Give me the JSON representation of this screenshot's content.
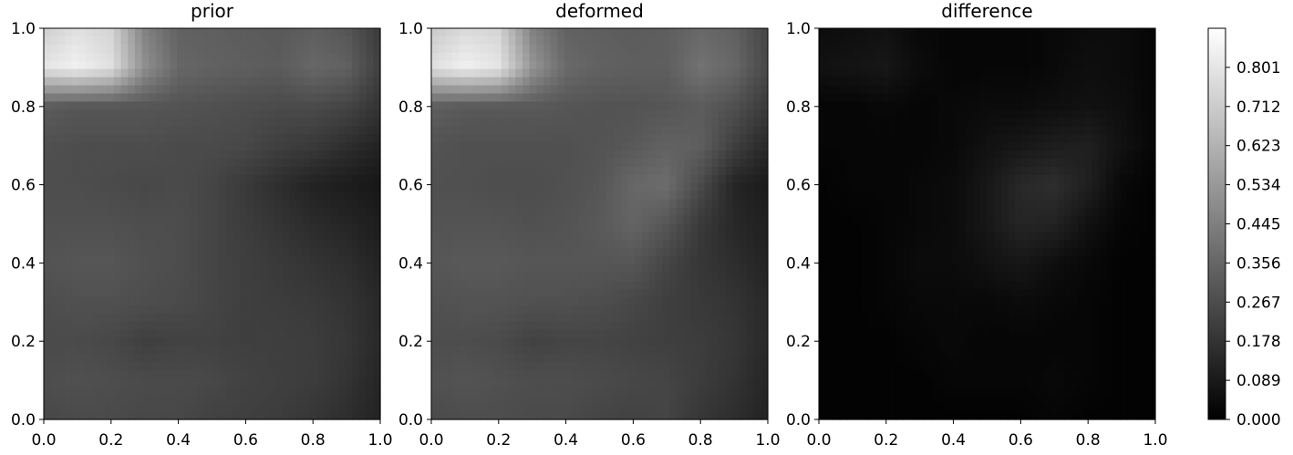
{
  "chart_data": [
    {
      "type": "heatmap",
      "title": "prior",
      "xlim": [
        0.0,
        1.0
      ],
      "ylim": [
        0.0,
        1.0
      ],
      "xticks": [
        "0.0",
        "0.2",
        "0.4",
        "0.6",
        "0.8",
        "1.0"
      ],
      "yticks": [
        "0.0",
        "0.2",
        "0.4",
        "0.6",
        "0.8",
        "1.0"
      ],
      "colormap": "gray",
      "grid": false,
      "values_description_levels": {
        "grid_x": [
          0.0,
          0.1,
          0.2,
          0.3,
          0.4,
          0.5,
          0.6,
          0.7,
          0.8,
          0.9,
          1.0
        ],
        "grid_y": [
          1.0,
          0.9,
          0.8,
          0.7,
          0.6,
          0.5,
          0.4,
          0.3,
          0.2,
          0.1,
          0.0
        ],
        "z": [
          [
            0.72,
            0.78,
            0.74,
            0.45,
            0.34,
            0.33,
            0.32,
            0.31,
            0.33,
            0.3,
            0.2
          ],
          [
            0.8,
            0.84,
            0.78,
            0.5,
            0.36,
            0.34,
            0.33,
            0.32,
            0.36,
            0.34,
            0.22
          ],
          [
            0.32,
            0.3,
            0.3,
            0.3,
            0.29,
            0.28,
            0.27,
            0.26,
            0.26,
            0.24,
            0.18
          ],
          [
            0.28,
            0.27,
            0.27,
            0.27,
            0.26,
            0.26,
            0.25,
            0.22,
            0.2,
            0.16,
            0.12
          ],
          [
            0.27,
            0.27,
            0.26,
            0.25,
            0.26,
            0.24,
            0.2,
            0.16,
            0.12,
            0.1,
            0.08
          ],
          [
            0.28,
            0.28,
            0.28,
            0.27,
            0.27,
            0.24,
            0.21,
            0.18,
            0.15,
            0.13,
            0.1
          ],
          [
            0.29,
            0.3,
            0.3,
            0.28,
            0.27,
            0.24,
            0.22,
            0.2,
            0.18,
            0.16,
            0.12
          ],
          [
            0.27,
            0.28,
            0.28,
            0.27,
            0.26,
            0.24,
            0.22,
            0.21,
            0.2,
            0.18,
            0.14
          ],
          [
            0.26,
            0.26,
            0.25,
            0.22,
            0.23,
            0.23,
            0.22,
            0.22,
            0.21,
            0.19,
            0.14
          ],
          [
            0.27,
            0.28,
            0.27,
            0.26,
            0.26,
            0.25,
            0.23,
            0.22,
            0.21,
            0.18,
            0.13
          ],
          [
            0.25,
            0.26,
            0.26,
            0.25,
            0.25,
            0.23,
            0.22,
            0.21,
            0.19,
            0.16,
            0.12
          ]
        ]
      }
    },
    {
      "type": "heatmap",
      "title": "deformed",
      "xlim": [
        0.0,
        1.0
      ],
      "ylim": [
        0.0,
        1.0
      ],
      "xticks": [
        "0.0",
        "0.2",
        "0.4",
        "0.6",
        "0.8",
        "1.0"
      ],
      "yticks": [
        "0.0",
        "0.2",
        "0.4",
        "0.6",
        "0.8",
        "1.0"
      ],
      "colormap": "gray",
      "grid": false,
      "values_description_levels": {
        "grid_x": [
          0.0,
          0.1,
          0.2,
          0.3,
          0.4,
          0.5,
          0.6,
          0.7,
          0.8,
          0.9,
          1.0
        ],
        "grid_y": [
          1.0,
          0.9,
          0.8,
          0.7,
          0.6,
          0.5,
          0.4,
          0.3,
          0.2,
          0.1,
          0.0
        ],
        "z": [
          [
            0.7,
            0.76,
            0.74,
            0.45,
            0.34,
            0.33,
            0.32,
            0.33,
            0.36,
            0.34,
            0.24
          ],
          [
            0.78,
            0.84,
            0.8,
            0.52,
            0.37,
            0.34,
            0.33,
            0.33,
            0.4,
            0.36,
            0.25
          ],
          [
            0.33,
            0.31,
            0.31,
            0.31,
            0.3,
            0.29,
            0.29,
            0.3,
            0.32,
            0.28,
            0.2
          ],
          [
            0.29,
            0.28,
            0.28,
            0.28,
            0.28,
            0.29,
            0.31,
            0.34,
            0.33,
            0.22,
            0.14
          ],
          [
            0.28,
            0.28,
            0.27,
            0.27,
            0.28,
            0.3,
            0.36,
            0.38,
            0.26,
            0.13,
            0.09
          ],
          [
            0.29,
            0.29,
            0.29,
            0.28,
            0.29,
            0.31,
            0.35,
            0.3,
            0.2,
            0.14,
            0.11
          ],
          [
            0.3,
            0.31,
            0.31,
            0.3,
            0.3,
            0.3,
            0.3,
            0.24,
            0.19,
            0.16,
            0.12
          ],
          [
            0.28,
            0.29,
            0.29,
            0.28,
            0.28,
            0.27,
            0.25,
            0.22,
            0.2,
            0.18,
            0.14
          ],
          [
            0.27,
            0.27,
            0.26,
            0.23,
            0.24,
            0.24,
            0.23,
            0.22,
            0.21,
            0.19,
            0.14
          ],
          [
            0.28,
            0.29,
            0.28,
            0.27,
            0.27,
            0.26,
            0.25,
            0.24,
            0.21,
            0.18,
            0.13
          ],
          [
            0.26,
            0.27,
            0.27,
            0.26,
            0.26,
            0.24,
            0.23,
            0.24,
            0.19,
            0.16,
            0.12
          ]
        ]
      }
    },
    {
      "type": "heatmap",
      "title": "difference",
      "xlim": [
        0.0,
        1.0
      ],
      "ylim": [
        0.0,
        1.0
      ],
      "xticks": [
        "0.0",
        "0.2",
        "0.4",
        "0.6",
        "0.8",
        "1.0"
      ],
      "yticks": [
        "0.0",
        "0.2",
        "0.4",
        "0.6",
        "0.8",
        "1.0"
      ],
      "colormap": "gray",
      "grid": false,
      "values_description_levels": {
        "grid_x": [
          0.0,
          0.1,
          0.2,
          0.3,
          0.4,
          0.5,
          0.6,
          0.7,
          0.8,
          0.9,
          1.0
        ],
        "grid_y": [
          1.0,
          0.9,
          0.8,
          0.7,
          0.6,
          0.5,
          0.4,
          0.3,
          0.2,
          0.1,
          0.0
        ],
        "z": [
          [
            0.04,
            0.05,
            0.06,
            0.03,
            0.02,
            0.02,
            0.02,
            0.03,
            0.04,
            0.04,
            0.02
          ],
          [
            0.06,
            0.07,
            0.08,
            0.04,
            0.02,
            0.02,
            0.02,
            0.03,
            0.05,
            0.04,
            0.02
          ],
          [
            0.02,
            0.02,
            0.03,
            0.02,
            0.03,
            0.04,
            0.04,
            0.05,
            0.06,
            0.05,
            0.02
          ],
          [
            0.02,
            0.02,
            0.02,
            0.02,
            0.03,
            0.06,
            0.08,
            0.1,
            0.11,
            0.06,
            0.02
          ],
          [
            0.01,
            0.02,
            0.02,
            0.03,
            0.04,
            0.08,
            0.14,
            0.16,
            0.11,
            0.03,
            0.01
          ],
          [
            0.01,
            0.01,
            0.02,
            0.03,
            0.04,
            0.08,
            0.13,
            0.12,
            0.06,
            0.02,
            0.01
          ],
          [
            0.01,
            0.01,
            0.02,
            0.04,
            0.04,
            0.06,
            0.08,
            0.05,
            0.03,
            0.01,
            0.01
          ],
          [
            0.01,
            0.01,
            0.02,
            0.03,
            0.03,
            0.03,
            0.04,
            0.03,
            0.02,
            0.01,
            0.01
          ],
          [
            0.01,
            0.01,
            0.01,
            0.02,
            0.03,
            0.02,
            0.02,
            0.02,
            0.02,
            0.01,
            0.01
          ],
          [
            0.01,
            0.01,
            0.01,
            0.01,
            0.02,
            0.02,
            0.02,
            0.03,
            0.02,
            0.01,
            0.01
          ],
          [
            0.01,
            0.01,
            0.01,
            0.01,
            0.01,
            0.01,
            0.01,
            0.02,
            0.01,
            0.01,
            0.01
          ]
        ]
      }
    }
  ],
  "colorbar": {
    "range": [
      0.0,
      0.89
    ],
    "tick_labels": [
      "0.000",
      "0.089",
      "0.178",
      "0.267",
      "0.356",
      "0.445",
      "0.534",
      "0.623",
      "0.712",
      "0.801"
    ],
    "tick_values": [
      0.0,
      0.089,
      0.178,
      0.267,
      0.356,
      0.445,
      0.534,
      0.623,
      0.712,
      0.801
    ]
  }
}
